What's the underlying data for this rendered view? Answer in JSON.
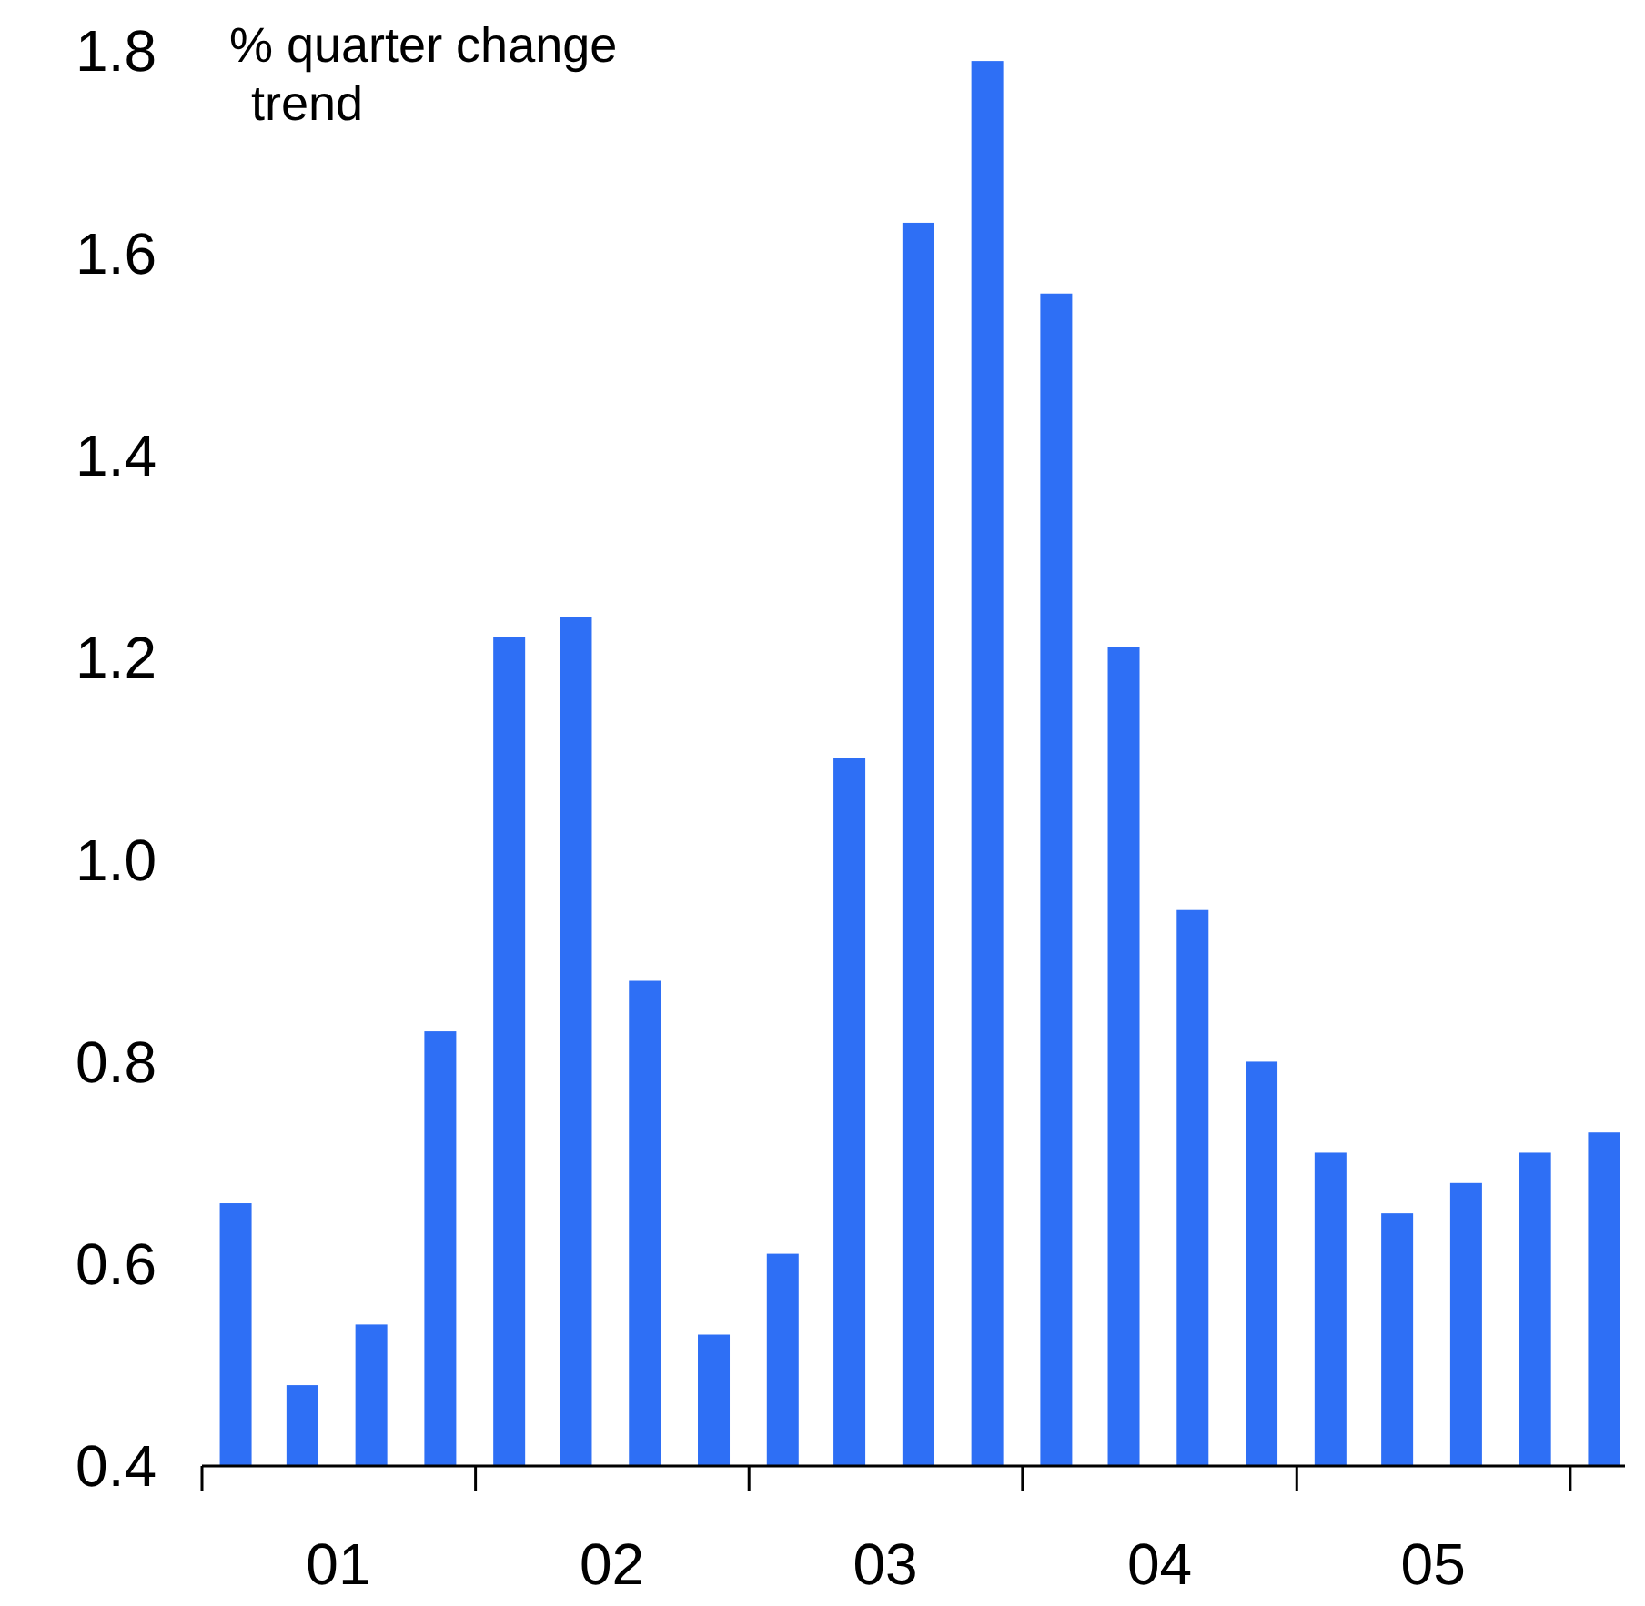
{
  "chart_data": {
    "type": "bar",
    "ylabel": "% quarter change\ntrend",
    "x": [
      "2001-02-15",
      "2001-05-15",
      "2001-08-15",
      "2001-11-15",
      "2002-02-15",
      "2002-05-15",
      "2002-08-15",
      "2002-11-15",
      "2003-02-15",
      "2003-05-15",
      "2003-08-15",
      "2003-11-15",
      "2004-02-15",
      "2004-05-15",
      "2004-08-15",
      "2004-11-15",
      "2005-02-15",
      "2005-05-15",
      "2005-08-15",
      "2005-11-15",
      "2006-02-15"
    ],
    "values": [
      0.66,
      0.48,
      0.54,
      0.83,
      1.22,
      1.24,
      0.88,
      0.53,
      0.61,
      1.1,
      1.63,
      1.79,
      1.56,
      1.21,
      0.95,
      0.8,
      0.71,
      0.65,
      0.68,
      0.71,
      0.73
    ],
    "color": "#2e6ff5",
    "xlim": [
      "2001-01-01",
      "2006-03-15"
    ],
    "xticks": [
      {
        "value": "2001-01-01",
        "label": null
      },
      {
        "value": "2001-07-02",
        "label": "01"
      },
      {
        "value": "2002-01-01",
        "label": null
      },
      {
        "value": "2002-07-02",
        "label": "02"
      },
      {
        "value": "2003-01-01",
        "label": null
      },
      {
        "value": "2003-07-02",
        "label": "03"
      },
      {
        "value": "2004-01-01",
        "label": null
      },
      {
        "value": "2004-07-02",
        "label": "04"
      },
      {
        "value": "2005-01-01",
        "label": null
      },
      {
        "value": "2005-07-02",
        "label": "05"
      },
      {
        "value": "2006-01-01",
        "label": null
      }
    ],
    "ylim": [
      0.4,
      1.8
    ],
    "yticks": [
      {
        "value": 0.4,
        "label": "0.4"
      },
      {
        "value": 0.6,
        "label": "0.6"
      },
      {
        "value": 0.8,
        "label": "0.8"
      },
      {
        "value": 1.0,
        "label": "1.0"
      },
      {
        "value": 1.2,
        "label": "1.2"
      },
      {
        "value": 1.4,
        "label": "1.4"
      },
      {
        "value": 1.6,
        "label": "1.6"
      },
      {
        "value": 1.8,
        "label": "1.8"
      }
    ],
    "grid": false
  }
}
